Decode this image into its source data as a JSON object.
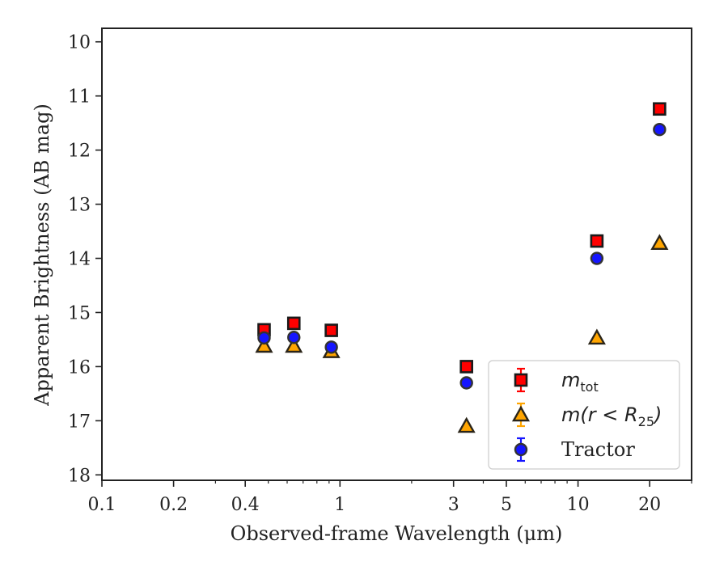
{
  "chart_data": {
    "type": "scatter",
    "xscale": "log",
    "xlim": [
      0.1,
      30
    ],
    "ylim": [
      18.1,
      9.75
    ],
    "y_inverted": true,
    "xlabel": "Observed-frame Wavelength (μm)",
    "ylabel": "Apparent Brightness (AB mag)",
    "x_ticks": [
      0.1,
      0.2,
      0.4,
      1,
      3,
      5,
      10,
      20
    ],
    "x_tick_labels": [
      "0.1",
      "0.2",
      "0.4",
      "1",
      "3",
      "5",
      "10",
      "20"
    ],
    "y_ticks": [
      10,
      11,
      12,
      13,
      14,
      15,
      16,
      17,
      18
    ],
    "y_tick_labels": [
      "10",
      "11",
      "12",
      "13",
      "14",
      "15",
      "16",
      "17",
      "18"
    ],
    "legend_position": "lower-right",
    "series": [
      {
        "name": "m_tot",
        "legend_main": "m",
        "legend_sub": "tot",
        "marker": "square",
        "color": "#ff0000",
        "errcolor": "#ff0000",
        "x": [
          0.48,
          0.64,
          0.92,
          3.4,
          12.0,
          22.0
        ],
        "y": [
          15.32,
          15.2,
          15.33,
          16.0,
          13.68,
          11.24
        ]
      },
      {
        "name": "m(r < R25)",
        "legend_main": "m(r < R",
        "legend_sub": "25",
        "legend_end": ")",
        "marker": "triangle",
        "color": "#ffa500",
        "errcolor": "#ffa500",
        "x": [
          0.48,
          0.64,
          0.92,
          3.4,
          12.0,
          22.0
        ],
        "y": [
          15.62,
          15.62,
          15.72,
          17.1,
          15.47,
          13.72
        ]
      },
      {
        "name": "Tractor",
        "legend_main": "Tractor",
        "marker": "circle",
        "color": "#1515ff",
        "errcolor": "#1515ff",
        "x": [
          0.48,
          0.64,
          0.92,
          3.4,
          12.0,
          22.0
        ],
        "y": [
          15.47,
          15.46,
          15.64,
          16.3,
          14.0,
          11.62
        ]
      }
    ]
  }
}
